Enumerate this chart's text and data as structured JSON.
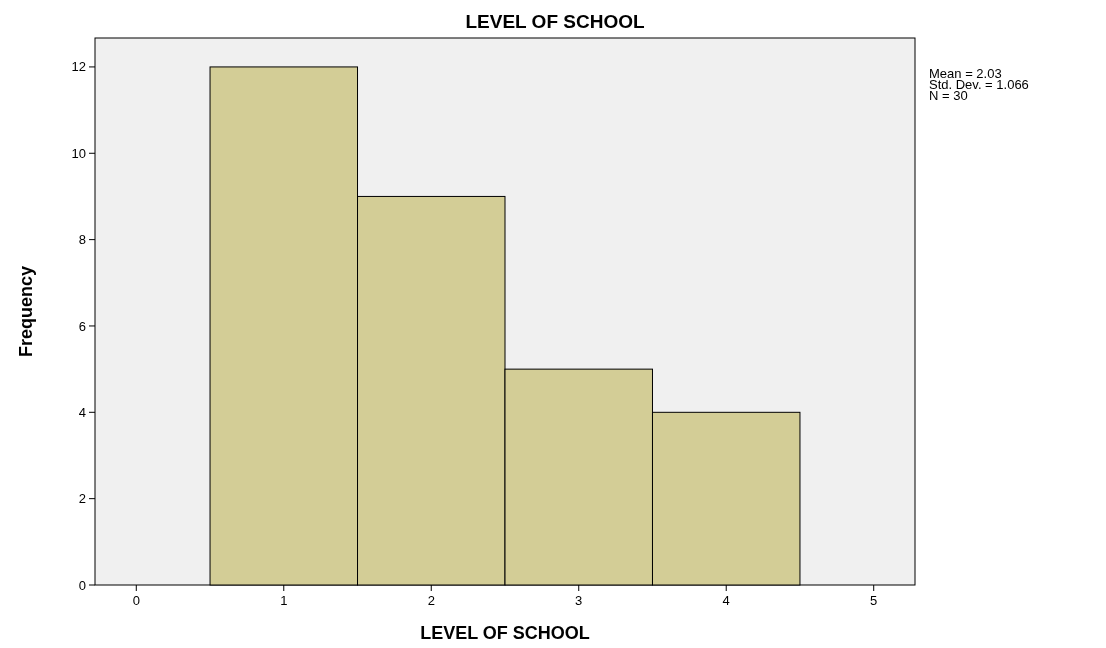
{
  "chart_data": {
    "type": "histogram",
    "title": "LEVEL OF SCHOOL",
    "xlabel": "LEVEL OF SCHOOL",
    "ylabel": "Frequency",
    "bins": [
      0.5,
      1.5,
      2.5,
      3.5,
      4.5
    ],
    "values": [
      12,
      9,
      5,
      4
    ],
    "color": "#d3cd96",
    "xlim": [
      -0.28,
      5.28
    ],
    "xticks": [
      0,
      1,
      2,
      3,
      4,
      5
    ],
    "ylim": [
      0,
      12.67
    ],
    "yticks": [
      0,
      2,
      4,
      6,
      8,
      10,
      12
    ],
    "annotations": [
      "Mean = 2.03",
      "Std. Dev. = 1.066",
      "N = 30"
    ],
    "grid": false
  }
}
